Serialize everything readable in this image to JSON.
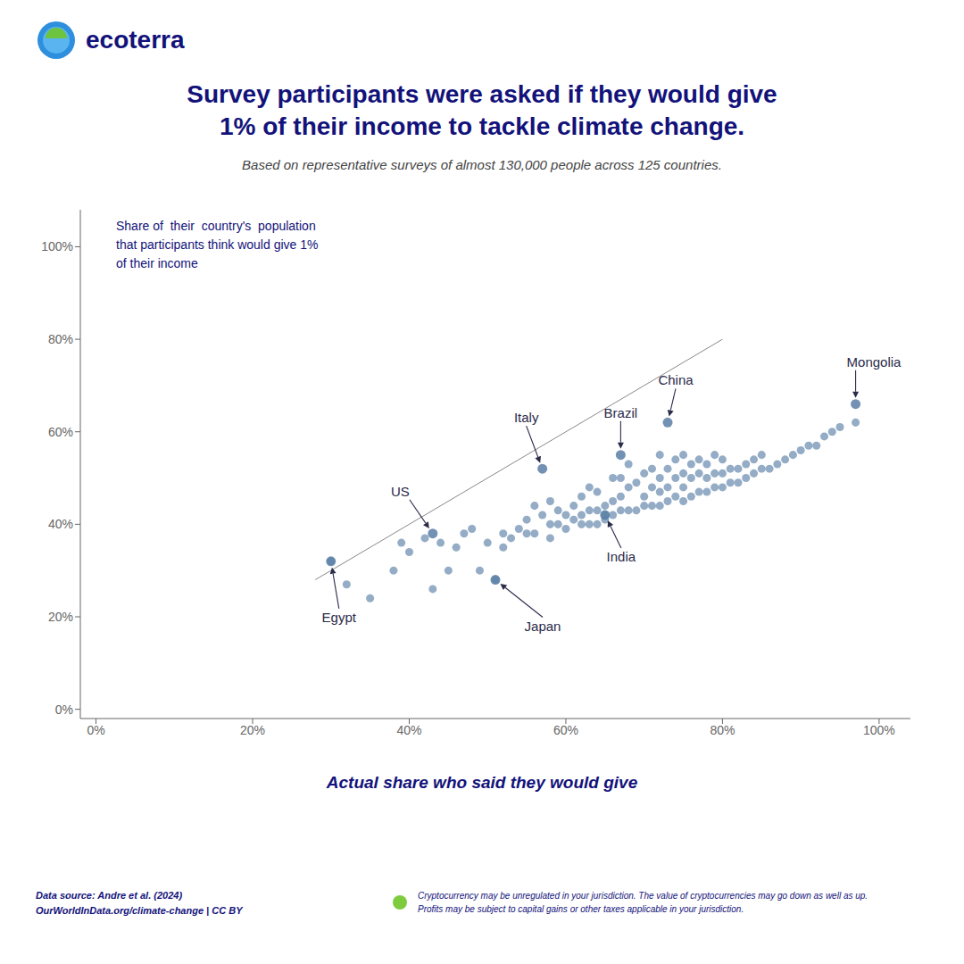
{
  "chart_data": {
    "type": "scatter",
    "title": "Survey participants were asked if they would give\n1% of their income to tackle climate change.",
    "subtitle": "Based on representative surveys of almost 130,000 people across 125 countries.",
    "xlabel": "Actual share who said they would give",
    "ylabel": "Share of  their  country's  population\nthat participants think would give 1%\nof their income",
    "logo_text": "ecoterra",
    "source": "Data source: Andre et al. (2024)\nOurWorldInData.org/climate-change | CC BY",
    "disclaimer": "Cryptocurrency may be unregulated in your jurisdiction. The value of cryptocurrencies may go down as well as up.\nProfits may be subject to capital gains or other taxes applicable in your jurisdiction.",
    "x": [
      30,
      32,
      35,
      38,
      39,
      40,
      42,
      43,
      44,
      45,
      46,
      47,
      48,
      49,
      50,
      51,
      52,
      52,
      53,
      54,
      55,
      55,
      56,
      56,
      57,
      58,
      58,
      58,
      59,
      59,
      60,
      60,
      61,
      61,
      62,
      62,
      62,
      63,
      63,
      63,
      64,
      64,
      64,
      65,
      65,
      65,
      66,
      66,
      66,
      67,
      67,
      67,
      68,
      68,
      68,
      69,
      69,
      70,
      70,
      70,
      71,
      71,
      71,
      72,
      72,
      72,
      72,
      73,
      73,
      73,
      74,
      74,
      74,
      75,
      75,
      75,
      75,
      76,
      76,
      76,
      77,
      77,
      77,
      78,
      78,
      78,
      79,
      79,
      79,
      80,
      80,
      80,
      81,
      81,
      82,
      82,
      83,
      83,
      84,
      84,
      85,
      85,
      86,
      87,
      88,
      89,
      90,
      91,
      92,
      93,
      94,
      95,
      97
    ],
    "values": [
      32,
      27,
      24,
      30,
      36,
      34,
      37,
      26,
      36,
      30,
      35,
      38,
      39,
      30,
      36,
      28,
      35,
      38,
      37,
      39,
      38,
      41,
      38,
      44,
      42,
      37,
      40,
      45,
      40,
      43,
      39,
      42,
      41,
      44,
      40,
      42,
      46,
      40,
      43,
      48,
      40,
      43,
      47,
      41,
      44,
      42,
      42,
      45,
      50,
      43,
      46,
      50,
      43,
      48,
      53,
      43,
      49,
      44,
      46,
      51,
      44,
      48,
      52,
      44,
      47,
      50,
      55,
      45,
      48,
      52,
      46,
      50,
      54,
      45,
      48,
      51,
      55,
      46,
      50,
      53,
      47,
      51,
      54,
      47,
      50,
      53,
      48,
      51,
      55,
      48,
      51,
      54,
      49,
      52,
      49,
      52,
      50,
      53,
      51,
      54,
      52,
      55,
      52,
      53,
      54,
      55,
      56,
      57,
      57,
      59,
      60,
      61,
      62
    ],
    "color": "#5b7fa6",
    "annotations": [
      {
        "text": "Egypt",
        "x": 30,
        "y": 32
      },
      {
        "text": "US",
        "x": 43,
        "y": 38
      },
      {
        "text": "Japan",
        "x": 51,
        "y": 28
      },
      {
        "text": "Italy",
        "x": 57,
        "y": 52
      },
      {
        "text": "India",
        "x": 65,
        "y": 42
      },
      {
        "text": "Brazil",
        "x": 67,
        "y": 55
      },
      {
        "text": "China",
        "x": 73,
        "y": 62
      },
      {
        "text": "Mongolia",
        "x": 97,
        "y": 66
      }
    ],
    "lines": [
      {
        "x": [
          28,
          80
        ],
        "y": [
          28,
          80
        ],
        "color": "#888888"
      }
    ],
    "xlim": [
      -2,
      104
    ],
    "ylim": [
      -2,
      108
    ],
    "xticks": [
      {
        "value": 0,
        "label": "0%"
      },
      {
        "value": 20,
        "label": "20%"
      },
      {
        "value": 40,
        "label": "40%"
      },
      {
        "value": 60,
        "label": "60%"
      },
      {
        "value": 80,
        "label": "80%"
      },
      {
        "value": 100,
        "label": "100%"
      }
    ],
    "yticks": [
      {
        "value": 0,
        "label": "0%"
      },
      {
        "value": 20,
        "label": "20%"
      },
      {
        "value": 40,
        "label": "40%"
      },
      {
        "value": 60,
        "label": "60%"
      },
      {
        "value": 80,
        "label": "80%"
      },
      {
        "value": 100,
        "label": "100%"
      }
    ],
    "grid": false
  }
}
